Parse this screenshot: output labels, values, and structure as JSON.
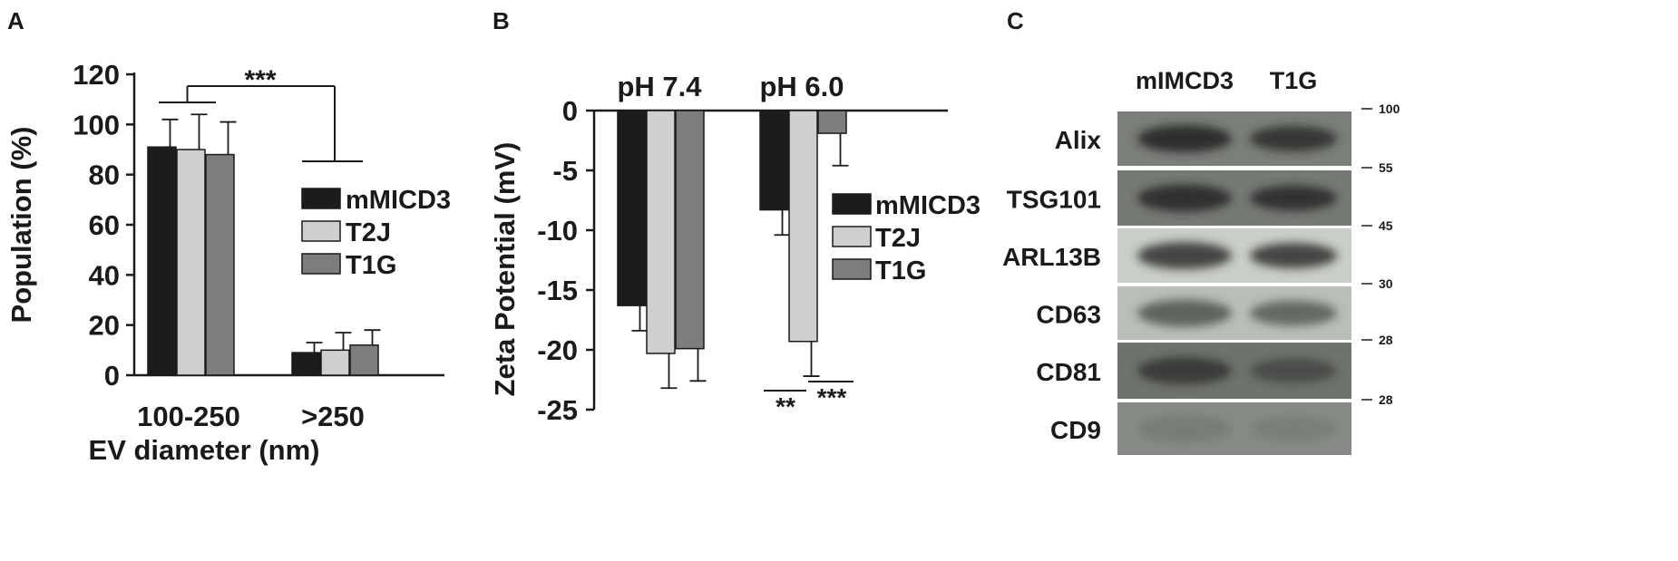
{
  "panels": {
    "a": {
      "letter": "A"
    },
    "b": {
      "letter": "B"
    },
    "c": {
      "letter": "C"
    }
  },
  "chart_data": [
    {
      "panel": "A",
      "type": "bar",
      "ylabel": "Population (%)",
      "xlabel": "EV diameter (nm)",
      "categories": [
        "100-250",
        ">250"
      ],
      "yticks": [
        "0",
        "20",
        "40",
        "60",
        "80",
        "100",
        "120"
      ],
      "ylim": [
        0,
        120
      ],
      "series": [
        {
          "name": "mMICD3",
          "color": "#1c1c1c",
          "values": [
            91,
            9
          ],
          "errors": [
            11,
            4
          ]
        },
        {
          "name": "T2J",
          "color": "#cfcfcf",
          "values": [
            90,
            10
          ],
          "errors": [
            14,
            7
          ]
        },
        {
          "name": "T1G",
          "color": "#7d7d7d",
          "values": [
            88,
            12
          ],
          "errors": [
            13,
            6
          ]
        }
      ],
      "legend": "right",
      "significance": [
        {
          "label": "***",
          "between": [
            "100-250",
            ">250"
          ]
        }
      ],
      "grid": false
    },
    {
      "panel": "B",
      "type": "bar",
      "ylabel": "Zeta Potential (mV)",
      "categories": [
        "pH 7.4",
        "pH 6.0"
      ],
      "yticks": [
        "0",
        "-5",
        "-10",
        "-15",
        "-20",
        "-25"
      ],
      "ylim": [
        -25,
        0
      ],
      "series": [
        {
          "name": "mMICD3",
          "color": "#1c1c1c",
          "values": [
            -16.3,
            -8.3
          ],
          "errors": [
            2.1,
            2.1
          ]
        },
        {
          "name": "T2J",
          "color": "#cfcfcf",
          "values": [
            -20.3,
            -19.3
          ],
          "errors": [
            2.9,
            2.9
          ]
        },
        {
          "name": "T1G",
          "color": "#7d7d7d",
          "values": [
            -19.9,
            -1.9
          ],
          "errors": [
            2.7,
            2.7
          ]
        }
      ],
      "legend": "right",
      "significance": [
        {
          "label": "**",
          "between": [
            "mMICD3",
            "T2J"
          ],
          "category": "pH 6.0"
        },
        {
          "label": "***",
          "between": [
            "T2J",
            "T1G"
          ],
          "category": "pH 6.0"
        }
      ],
      "grid": false
    }
  ],
  "blot": {
    "columns": [
      "mIMCD3",
      "T1G"
    ],
    "rows": [
      {
        "label": "Alix",
        "marker": "100",
        "shade": "#2a2a2a",
        "bg": "#7b7f79",
        "i1": 0.95,
        "i2": 0.85
      },
      {
        "label": "TSG101",
        "marker": "55",
        "shade": "#2b2b2b",
        "bg": "#767a74",
        "i1": 0.92,
        "i2": 0.9
      },
      {
        "label": "ARL13B",
        "marker": "45",
        "shade": "#2e2f2d",
        "bg": "#c9cec6",
        "i1": 0.85,
        "i2": 0.85
      },
      {
        "label": "CD63",
        "marker": "30",
        "shade": "#4a4e49",
        "bg": "#b9beb7",
        "i1": 0.8,
        "i2": 0.75
      },
      {
        "label": "CD81",
        "marker": "28",
        "shade": "#2e2f2d",
        "bg": "#6f736d",
        "i1": 0.8,
        "i2": 0.55
      },
      {
        "label": "CD9",
        "marker": "28",
        "shade": "#5e625c",
        "bg": "#878b85",
        "i1": 0.35,
        "i2": 0.3
      }
    ]
  }
}
